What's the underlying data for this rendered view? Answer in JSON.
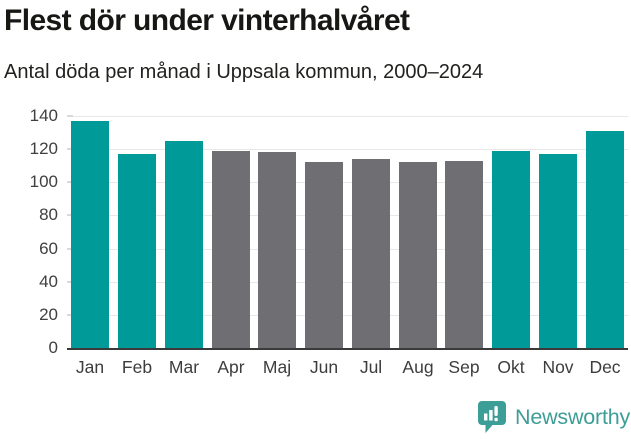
{
  "header": {
    "title": "Flest dör under vinterhalvåret",
    "subtitle": "Antal döda per månad i Uppsala kommun, 2000–2024"
  },
  "chart_data": {
    "type": "bar",
    "title": "Flest dör under vinterhalvåret",
    "subtitle": "Antal döda per månad i Uppsala kommun, 2000–2024",
    "categories": [
      "Jan",
      "Feb",
      "Mar",
      "Apr",
      "Maj",
      "Jun",
      "Jul",
      "Aug",
      "Sep",
      "Okt",
      "Nov",
      "Dec"
    ],
    "values": [
      137,
      117,
      125,
      119,
      118,
      112,
      114,
      112,
      113,
      119,
      117,
      131
    ],
    "highlight": [
      true,
      true,
      true,
      false,
      false,
      false,
      false,
      false,
      false,
      true,
      true,
      true
    ],
    "highlighted_months": [
      "Jan",
      "Feb",
      "Mar",
      "Okt",
      "Nov",
      "Dec"
    ],
    "xlabel": "",
    "ylabel": "",
    "ylim": [
      0,
      140
    ],
    "yticks": [
      0,
      20,
      40,
      60,
      80,
      100,
      120,
      140
    ],
    "grid": "horizontal",
    "legend_position": "none",
    "colors": {
      "highlight_bar": "#009b98",
      "default_bar": "#6e6e73",
      "gridline": "#e8e8e8",
      "axis_line": "#3a3a3a",
      "tick_label": "#404040"
    }
  },
  "footer": {
    "brand_name": "Newsworthy",
    "logo_icon": "bar-chart-speech-bubble-icon",
    "brand_color": "#3d9d97"
  }
}
